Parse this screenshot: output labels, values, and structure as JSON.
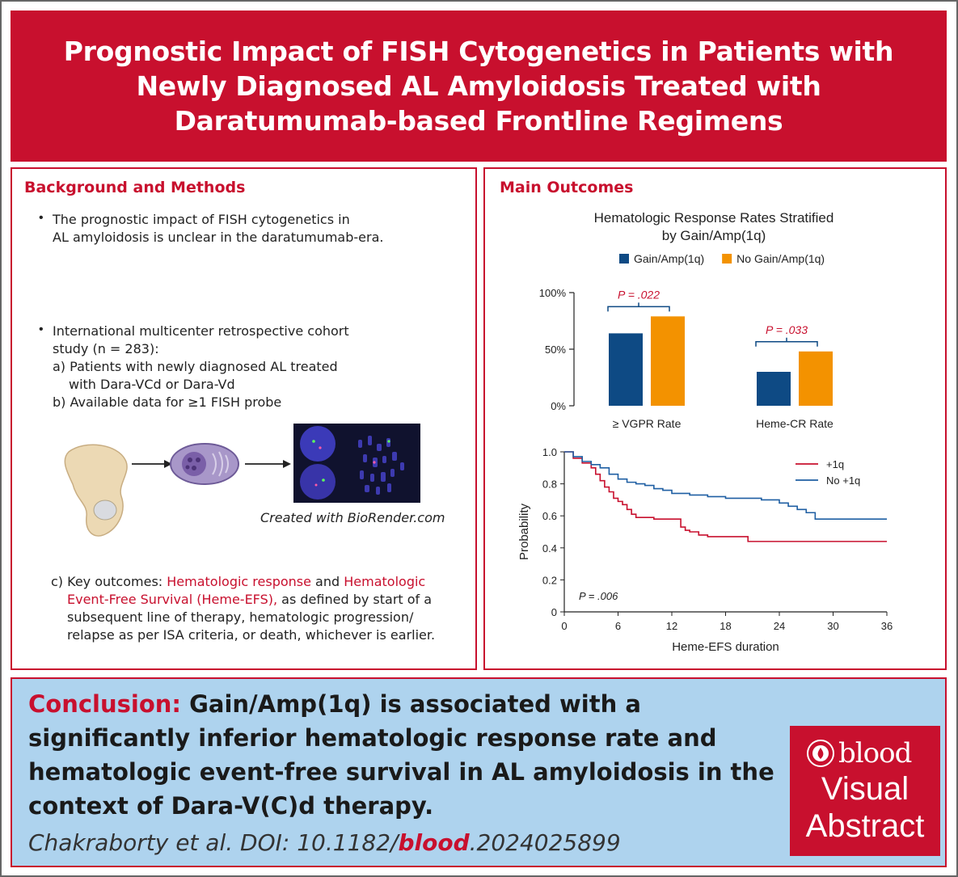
{
  "title": "Prognostic Impact of FISH Cytogenetics in Patients with Newly Diagnosed AL Amyloidosis Treated with Daratumumab-based Frontline Regimens",
  "background": {
    "heading": "Background and Methods",
    "bullet1": [
      "The prognostic impact of FISH cytogenetics in",
      "AL amyloidosis is unclear in the daratumumab-era."
    ],
    "bullet2": [
      "International multicenter retrospective cohort",
      "study (n = 283):"
    ],
    "sub_a": [
      "a) Patients with newly diagnosed AL treated",
      "with Dara-VCd or Dara-Vd"
    ],
    "sub_b": "b) Available data for ≥1 FISH probe",
    "image_credit": "Created with BioRender.com",
    "outcomes_prefix": "c) Key outcomes: ",
    "outcomes_hl1": "Hematologic response",
    "outcomes_and": " and ",
    "outcomes_hl2a": "Hematologic",
    "outcomes_hl2b": "Event-Free Survival (Heme-EFS),",
    "outcomes_rest1": " as defined by start of a",
    "outcomes_rest2": "subsequent line of therapy, hematologic progression/",
    "outcomes_rest3": "relapse as per ISA criteria, or death, whichever is earlier."
  },
  "main_outcomes": {
    "heading": "Main Outcomes",
    "chart_title_line1": "Hematologic Response Rates Stratified",
    "chart_title_line2": "by Gain/Amp(1q)"
  },
  "chart_data": [
    {
      "type": "bar",
      "title": "Hematologic Response Rates Stratified by Gain/Amp(1q)",
      "categories": [
        "≥ VGPR Rate",
        "Heme-CR Rate"
      ],
      "series": [
        {
          "name": "Gain/Amp(1q)",
          "values": [
            64,
            30
          ],
          "color": "#0e4a84"
        },
        {
          "name": "No Gain/Amp(1q)",
          "values": [
            79,
            48
          ],
          "color": "#f39200"
        }
      ],
      "y_ticks": [
        "0%",
        "50%",
        "100%"
      ],
      "ylim": [
        0,
        100
      ],
      "p_values": [
        "P = .022",
        "P = .033"
      ],
      "legend": "top"
    },
    {
      "type": "line",
      "xlabel": "Heme-EFS duration",
      "ylabel": "Probability",
      "x_ticks": [
        "0",
        "6",
        "12",
        "18",
        "24",
        "30",
        "36"
      ],
      "y_ticks": [
        "0",
        "0.2",
        "0.4",
        "0.6",
        "0.8",
        "1.0"
      ],
      "xlim": [
        0,
        36
      ],
      "ylim": [
        0,
        1
      ],
      "p_value": "P = .006",
      "legend": "top-right",
      "series": [
        {
          "name": "+1q",
          "color": "#c8102e",
          "x": [
            0,
            1,
            2,
            3,
            3.5,
            4,
            4.5,
            5,
            5.5,
            6,
            6.5,
            7,
            7.5,
            8,
            9,
            10,
            12,
            13,
            13.5,
            14,
            15,
            16,
            18,
            20,
            20.5,
            36
          ],
          "y": [
            1.0,
            0.96,
            0.93,
            0.9,
            0.86,
            0.82,
            0.78,
            0.75,
            0.71,
            0.69,
            0.67,
            0.64,
            0.61,
            0.59,
            0.59,
            0.58,
            0.58,
            0.53,
            0.51,
            0.5,
            0.48,
            0.47,
            0.47,
            0.47,
            0.44,
            0.44
          ]
        },
        {
          "name": "No +1q",
          "color": "#1f5fa3",
          "x": [
            0,
            1,
            2,
            3,
            4,
            5,
            6,
            7,
            8,
            9,
            10,
            11,
            12,
            14,
            16,
            18,
            20,
            22,
            24,
            25,
            26,
            27,
            28,
            30,
            32,
            34,
            36
          ],
          "y": [
            1.0,
            0.97,
            0.94,
            0.92,
            0.9,
            0.86,
            0.83,
            0.81,
            0.8,
            0.79,
            0.77,
            0.76,
            0.74,
            0.73,
            0.72,
            0.71,
            0.71,
            0.7,
            0.68,
            0.66,
            0.64,
            0.62,
            0.58,
            0.58,
            0.58,
            0.58,
            0.58
          ]
        }
      ]
    }
  ],
  "conclusion": {
    "label": "Conclusion:",
    "text": " Gain/Amp(1q) is associated with a significantly inferior hematologic response rate and hematologic event-free survival in AL amyloidosis in the context of Dara-V(C)d therapy.",
    "citation_pre": "Chakraborty et al. DOI: 10.1182/",
    "citation_bold": "blood",
    "citation_post": ".2024025899"
  },
  "badge": {
    "brand": "blood",
    "line1": "Visual",
    "line2": "Abstract"
  },
  "colors": {
    "brand_red": "#c8102e",
    "navy": "#0e4a84",
    "orange": "#f39200",
    "conclusion_bg": "#aed3ee"
  }
}
